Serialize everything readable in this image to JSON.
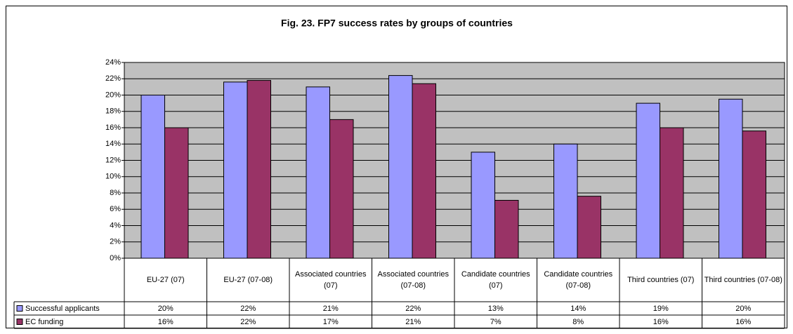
{
  "chart_data": {
    "type": "bar",
    "title": "Fig. 23. FP7 success rates by groups of countries",
    "categories": [
      "EU-27 (07)",
      "EU-27 (07-08)",
      "Associated countries (07)",
      "Associated countries (07-08)",
      "Candidate countries (07)",
      "Candidate countries (07-08)",
      "Third countries (07)",
      "Third countries (07-08)"
    ],
    "series": [
      {
        "name": "Successful applicants",
        "color": "#9999ff",
        "values": [
          20,
          21.6,
          21,
          22.4,
          13,
          14,
          19,
          19.5
        ],
        "value_labels": [
          "20%",
          "22%",
          "21%",
          "22%",
          "13%",
          "14%",
          "19%",
          "20%"
        ]
      },
      {
        "name": "EC funding",
        "color": "#993366",
        "values": [
          16,
          21.8,
          17,
          21.4,
          7.1,
          7.6,
          16,
          15.6
        ],
        "value_labels": [
          "16%",
          "22%",
          "17%",
          "21%",
          "7%",
          "8%",
          "16%",
          "16%"
        ]
      }
    ],
    "ylim": [
      0,
      24
    ],
    "yticks": [
      {
        "value": 0,
        "label": "0%"
      },
      {
        "value": 2,
        "label": "2%"
      },
      {
        "value": 4,
        "label": "4%"
      },
      {
        "value": 6,
        "label": "6%"
      },
      {
        "value": 8,
        "label": "8%"
      },
      {
        "value": 10,
        "label": "10%"
      },
      {
        "value": 12,
        "label": "12%"
      },
      {
        "value": 14,
        "label": "14%"
      },
      {
        "value": 16,
        "label": "16%"
      },
      {
        "value": 18,
        "label": "18%"
      },
      {
        "value": 20,
        "label": "20%"
      },
      {
        "value": 22,
        "label": "22%"
      },
      {
        "value": 24,
        "label": "24%"
      }
    ],
    "grid": true,
    "plot_background": "#c0c0c0"
  }
}
